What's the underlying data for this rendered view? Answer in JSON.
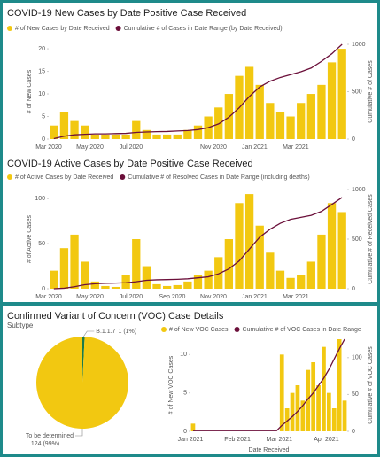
{
  "chart_data": [
    {
      "type": "bar",
      "title": "COVID-19 New Cases by Date Positive Case Received",
      "categories": [
        "Mar 2020",
        null,
        null,
        null,
        "May 2020",
        null,
        null,
        null,
        "Jul 2020",
        null,
        null,
        null,
        null,
        null,
        null,
        null,
        "Nov 2020",
        null,
        null,
        null,
        "Jan 2021",
        null,
        null,
        null,
        "Mar 2021",
        null,
        null,
        null,
        null
      ],
      "series": [
        {
          "name": "# of New Cases by Date Received",
          "color": "#f2c811",
          "values": [
            3,
            6,
            4,
            3,
            1,
            1,
            1,
            1,
            4,
            2,
            1,
            1,
            1,
            2,
            3,
            5,
            7,
            10,
            14,
            16,
            12,
            8,
            6,
            5,
            8,
            10,
            12,
            17,
            20
          ]
        },
        {
          "name": "Cumulative # of Cases in Date Range (by Date Received)",
          "color": "#6b0f3a",
          "axis": "y2",
          "values": [
            5,
            30,
            45,
            50,
            55,
            55,
            58,
            60,
            70,
            75,
            78,
            80,
            85,
            90,
            100,
            120,
            160,
            230,
            330,
            450,
            550,
            610,
            650,
            680,
            710,
            750,
            820,
            900,
            1000
          ]
        }
      ],
      "ylabel": "# of New Cases",
      "ylim": [
        0,
        21
      ],
      "yticks": [
        0,
        5,
        10,
        15,
        20
      ],
      "y2label": "Cumulative # of Cases",
      "y2lim": [
        0,
        1000
      ],
      "y2ticks": [
        0,
        500,
        1000
      ]
    },
    {
      "type": "bar",
      "title": "COVID-19 Active Cases by Date Positive Case Received",
      "categories": [
        "Mar 2020",
        null,
        null,
        null,
        "May 2020",
        null,
        null,
        null,
        "Jul 2020",
        null,
        null,
        null,
        "Sep 2020",
        null,
        null,
        null,
        "Nov 2020",
        null,
        null,
        null,
        "Jan 2021",
        null,
        null,
        null,
        "Mar 2021",
        null,
        null,
        null,
        null
      ],
      "series": [
        {
          "name": "# of Active Cases by Date Received",
          "color": "#f2c811",
          "values": [
            20,
            45,
            60,
            30,
            8,
            3,
            2,
            15,
            55,
            25,
            5,
            3,
            4,
            8,
            15,
            20,
            35,
            55,
            95,
            105,
            70,
            40,
            20,
            12,
            15,
            30,
            60,
            95,
            85
          ]
        },
        {
          "name": "Cumulative # of Resolved Cases in Date Range (including deaths)",
          "color": "#6b0f3a",
          "axis": "y2",
          "values": [
            0,
            5,
            20,
            40,
            50,
            55,
            57,
            60,
            70,
            85,
            90,
            92,
            95,
            100,
            110,
            120,
            150,
            200,
            280,
            400,
            520,
            600,
            660,
            700,
            720,
            740,
            780,
            850,
            920
          ]
        }
      ],
      "ylabel": "# of Active Cases",
      "ylim": [
        0,
        110
      ],
      "yticks": [
        0,
        50,
        100
      ],
      "y2label": "Cumulative # of Received Cases",
      "y2lim": [
        0,
        1000
      ],
      "y2ticks": [
        0,
        500,
        1000
      ]
    },
    {
      "type": "pie",
      "title": "Confirmed Variant of Concern (VOC) Case Details",
      "subtitle": "Subtype",
      "categories": [
        "B.1.1.7",
        "To be determined"
      ],
      "values": [
        1,
        124
      ],
      "value_labels": [
        "1 (1%)",
        "124 (99%)"
      ],
      "colors": [
        "#1a7a4a",
        "#f2c811"
      ]
    },
    {
      "type": "bar",
      "categories": [
        "Jan 2021",
        null,
        null,
        null,
        null,
        null,
        null,
        null,
        null,
        "Feb 2021",
        null,
        null,
        null,
        null,
        null,
        null,
        null,
        "Mar 2021",
        null,
        null,
        null,
        null,
        null,
        null,
        null,
        null,
        "Apr 2021",
        null,
        null,
        null
      ],
      "series": [
        {
          "name": "# of New VOC Cases",
          "color": "#f2c811",
          "values": [
            1,
            0,
            0,
            0,
            0,
            0,
            0,
            0,
            0,
            0,
            0,
            0,
            0,
            0,
            0,
            0,
            0,
            10,
            3,
            5,
            6,
            4,
            8,
            9,
            6,
            11,
            5,
            3,
            12,
            4
          ]
        },
        {
          "name": "Cumulative # of VOC Cases in Date Range",
          "color": "#6b0f3a",
          "axis": "y2",
          "values": [
            1,
            1,
            1,
            1,
            1,
            1,
            1,
            1,
            1,
            1,
            1,
            1,
            1,
            1,
            1,
            1,
            1,
            8,
            14,
            20,
            27,
            35,
            44,
            52,
            62,
            72,
            84,
            98,
            112,
            125
          ]
        }
      ],
      "xlabel": "Date Received",
      "ylabel": "# of New VOC Cases",
      "ylim": [
        0,
        12
      ],
      "yticks": [
        0,
        5,
        10
      ],
      "y2label": "Cumulative # of VOC Cases",
      "y2lim": [
        0,
        125
      ],
      "y2ticks": [
        0,
        50,
        100
      ]
    }
  ]
}
